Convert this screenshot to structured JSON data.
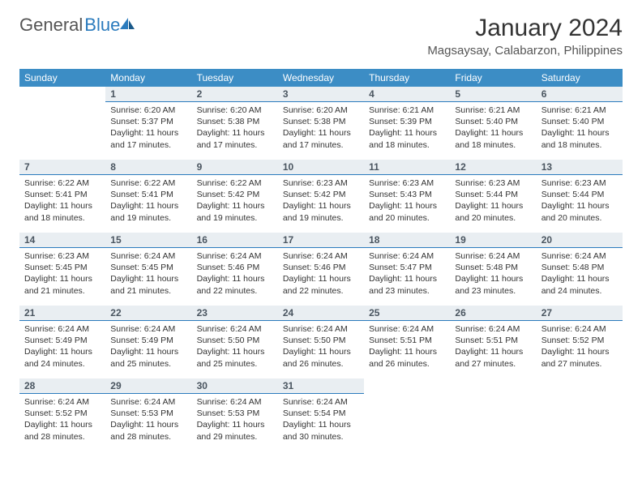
{
  "brand": {
    "part1": "General",
    "part2": "Blue"
  },
  "title": "January 2024",
  "location": "Magsaysay, Calabarzon, Philippines",
  "colors": {
    "header_bg": "#3c8dc5",
    "header_text": "#ffffff",
    "daynum_bg": "#e9eef2",
    "daynum_border": "#2b7bbd",
    "brand_blue": "#2b7bbd",
    "text": "#333333"
  },
  "weekdays": [
    "Sunday",
    "Monday",
    "Tuesday",
    "Wednesday",
    "Thursday",
    "Friday",
    "Saturday"
  ],
  "start_offset": 1,
  "days": [
    {
      "n": 1,
      "sunrise": "6:20 AM",
      "sunset": "5:37 PM",
      "daylight": "11 hours and 17 minutes."
    },
    {
      "n": 2,
      "sunrise": "6:20 AM",
      "sunset": "5:38 PM",
      "daylight": "11 hours and 17 minutes."
    },
    {
      "n": 3,
      "sunrise": "6:20 AM",
      "sunset": "5:38 PM",
      "daylight": "11 hours and 17 minutes."
    },
    {
      "n": 4,
      "sunrise": "6:21 AM",
      "sunset": "5:39 PM",
      "daylight": "11 hours and 18 minutes."
    },
    {
      "n": 5,
      "sunrise": "6:21 AM",
      "sunset": "5:40 PM",
      "daylight": "11 hours and 18 minutes."
    },
    {
      "n": 6,
      "sunrise": "6:21 AM",
      "sunset": "5:40 PM",
      "daylight": "11 hours and 18 minutes."
    },
    {
      "n": 7,
      "sunrise": "6:22 AM",
      "sunset": "5:41 PM",
      "daylight": "11 hours and 18 minutes."
    },
    {
      "n": 8,
      "sunrise": "6:22 AM",
      "sunset": "5:41 PM",
      "daylight": "11 hours and 19 minutes."
    },
    {
      "n": 9,
      "sunrise": "6:22 AM",
      "sunset": "5:42 PM",
      "daylight": "11 hours and 19 minutes."
    },
    {
      "n": 10,
      "sunrise": "6:23 AM",
      "sunset": "5:42 PM",
      "daylight": "11 hours and 19 minutes."
    },
    {
      "n": 11,
      "sunrise": "6:23 AM",
      "sunset": "5:43 PM",
      "daylight": "11 hours and 20 minutes."
    },
    {
      "n": 12,
      "sunrise": "6:23 AM",
      "sunset": "5:44 PM",
      "daylight": "11 hours and 20 minutes."
    },
    {
      "n": 13,
      "sunrise": "6:23 AM",
      "sunset": "5:44 PM",
      "daylight": "11 hours and 20 minutes."
    },
    {
      "n": 14,
      "sunrise": "6:23 AM",
      "sunset": "5:45 PM",
      "daylight": "11 hours and 21 minutes."
    },
    {
      "n": 15,
      "sunrise": "6:24 AM",
      "sunset": "5:45 PM",
      "daylight": "11 hours and 21 minutes."
    },
    {
      "n": 16,
      "sunrise": "6:24 AM",
      "sunset": "5:46 PM",
      "daylight": "11 hours and 22 minutes."
    },
    {
      "n": 17,
      "sunrise": "6:24 AM",
      "sunset": "5:46 PM",
      "daylight": "11 hours and 22 minutes."
    },
    {
      "n": 18,
      "sunrise": "6:24 AM",
      "sunset": "5:47 PM",
      "daylight": "11 hours and 23 minutes."
    },
    {
      "n": 19,
      "sunrise": "6:24 AM",
      "sunset": "5:48 PM",
      "daylight": "11 hours and 23 minutes."
    },
    {
      "n": 20,
      "sunrise": "6:24 AM",
      "sunset": "5:48 PM",
      "daylight": "11 hours and 24 minutes."
    },
    {
      "n": 21,
      "sunrise": "6:24 AM",
      "sunset": "5:49 PM",
      "daylight": "11 hours and 24 minutes."
    },
    {
      "n": 22,
      "sunrise": "6:24 AM",
      "sunset": "5:49 PM",
      "daylight": "11 hours and 25 minutes."
    },
    {
      "n": 23,
      "sunrise": "6:24 AM",
      "sunset": "5:50 PM",
      "daylight": "11 hours and 25 minutes."
    },
    {
      "n": 24,
      "sunrise": "6:24 AM",
      "sunset": "5:50 PM",
      "daylight": "11 hours and 26 minutes."
    },
    {
      "n": 25,
      "sunrise": "6:24 AM",
      "sunset": "5:51 PM",
      "daylight": "11 hours and 26 minutes."
    },
    {
      "n": 26,
      "sunrise": "6:24 AM",
      "sunset": "5:51 PM",
      "daylight": "11 hours and 27 minutes."
    },
    {
      "n": 27,
      "sunrise": "6:24 AM",
      "sunset": "5:52 PM",
      "daylight": "11 hours and 27 minutes."
    },
    {
      "n": 28,
      "sunrise": "6:24 AM",
      "sunset": "5:52 PM",
      "daylight": "11 hours and 28 minutes."
    },
    {
      "n": 29,
      "sunrise": "6:24 AM",
      "sunset": "5:53 PM",
      "daylight": "11 hours and 28 minutes."
    },
    {
      "n": 30,
      "sunrise": "6:24 AM",
      "sunset": "5:53 PM",
      "daylight": "11 hours and 29 minutes."
    },
    {
      "n": 31,
      "sunrise": "6:24 AM",
      "sunset": "5:54 PM",
      "daylight": "11 hours and 30 minutes."
    }
  ],
  "labels": {
    "sunrise": "Sunrise:",
    "sunset": "Sunset:",
    "daylight": "Daylight:"
  }
}
